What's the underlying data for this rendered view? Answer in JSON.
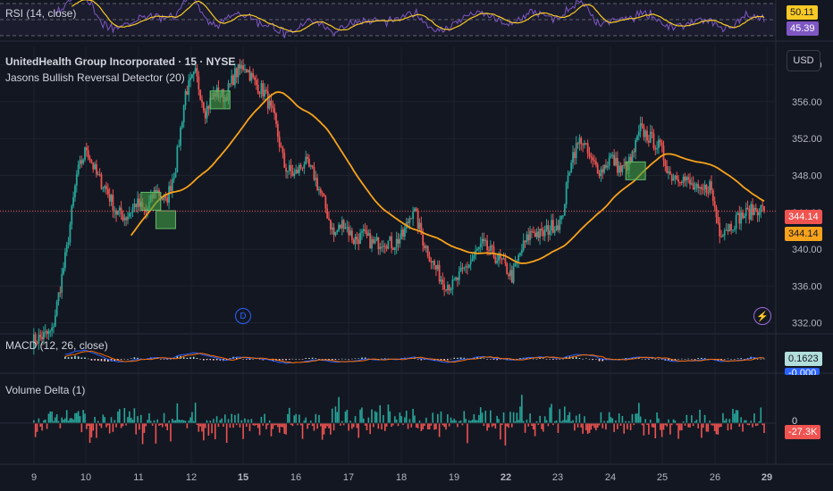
{
  "header": {
    "symbol": "UnitedHealth Group Incorporated · 15 · NYSE",
    "indicator": "Jasons Bullish Reversal Detector (20)",
    "currency": "USD"
  },
  "rsi": {
    "label": "RSI (14, close)",
    "value1": "50.11",
    "value2": "45.39"
  },
  "macd": {
    "label": "MACD (12, 26, close)",
    "value1": "0.1623",
    "value2": "-0.000"
  },
  "volume": {
    "label": "Volume Delta (1)",
    "zero_label": "0",
    "value": "-27.3K"
  },
  "price_badges": {
    "last": "344.14",
    "ma": "344.14"
  },
  "marker_d": "D",
  "colors": {
    "up": "#26a69a",
    "down": "#ef5350",
    "ma": "#f7a21b",
    "rsi": "#7e57c2",
    "macd": "#2962ff",
    "signal": "#ff6d00"
  },
  "chart_data": {
    "type": "candlestick",
    "y_axis": {
      "ticks": [
        332,
        336,
        340,
        344,
        348,
        352,
        356,
        360
      ],
      "tick_labels": [
        "332.00",
        "336.00",
        "340.00",
        "344.00",
        "348.00",
        "352.00",
        "356.00",
        "360.00"
      ],
      "range": [
        331,
        362
      ]
    },
    "x_axis": {
      "tick_labels": [
        "9",
        "10",
        "11",
        "12",
        "15",
        "16",
        "17",
        "18",
        "19",
        "22",
        "23",
        "24",
        "25",
        "26",
        "29"
      ]
    },
    "price_path": [
      [
        0,
        330
      ],
      [
        4,
        331
      ],
      [
        7,
        340
      ],
      [
        9,
        348
      ],
      [
        11,
        351
      ],
      [
        13,
        348
      ],
      [
        15,
        346.5
      ],
      [
        17,
        344
      ],
      [
        19,
        343.5
      ],
      [
        21,
        345
      ],
      [
        23,
        344
      ],
      [
        25,
        346.5
      ],
      [
        27,
        345
      ],
      [
        29,
        349
      ],
      [
        31,
        357
      ],
      [
        33,
        359
      ],
      [
        35,
        355
      ],
      [
        37,
        357
      ],
      [
        39,
        356.5
      ],
      [
        41,
        359
      ],
      [
        43,
        360
      ],
      [
        45,
        358
      ],
      [
        47,
        357
      ],
      [
        49,
        354
      ],
      [
        51,
        349
      ],
      [
        53,
        348
      ],
      [
        55,
        349.5
      ],
      [
        57,
        348
      ],
      [
        59,
        345
      ],
      [
        61,
        341.5
      ],
      [
        63,
        343
      ],
      [
        65,
        341
      ],
      [
        67,
        341.5
      ],
      [
        69,
        340.5
      ],
      [
        71,
        341
      ],
      [
        73,
        340.5
      ],
      [
        75,
        341.5
      ],
      [
        77,
        344.5
      ],
      [
        79,
        341
      ],
      [
        81,
        338.5
      ],
      [
        83,
        336.5
      ],
      [
        85,
        336
      ],
      [
        87,
        337.5
      ],
      [
        89,
        339
      ],
      [
        91,
        340.5
      ],
      [
        93,
        339.5
      ],
      [
        95,
        338.5
      ],
      [
        97,
        337
      ],
      [
        99,
        340
      ],
      [
        101,
        342
      ],
      [
        103,
        341.5
      ],
      [
        105,
        342.5
      ],
      [
        107,
        343
      ],
      [
        109,
        350
      ],
      [
        111,
        352
      ],
      [
        113,
        349.5
      ],
      [
        115,
        348.5
      ],
      [
        117,
        350
      ],
      [
        119,
        348.5
      ],
      [
        121,
        349.5
      ],
      [
        123,
        353
      ],
      [
        125,
        352
      ],
      [
        127,
        351
      ],
      [
        129,
        348
      ],
      [
        131,
        348
      ],
      [
        133,
        347
      ],
      [
        135,
        346
      ],
      [
        137,
        347
      ],
      [
        139,
        342
      ],
      [
        141,
        342.5
      ],
      [
        143,
        343.5
      ],
      [
        145,
        344
      ],
      [
        147,
        344.5
      ],
      [
        148,
        344.14
      ]
    ],
    "moving_average": {
      "period": 20
    },
    "signal_markers": [
      [
        24,
        345.2
      ],
      [
        27,
        343.2
      ],
      [
        38,
        356.2
      ],
      [
        122,
        348.5
      ]
    ]
  }
}
